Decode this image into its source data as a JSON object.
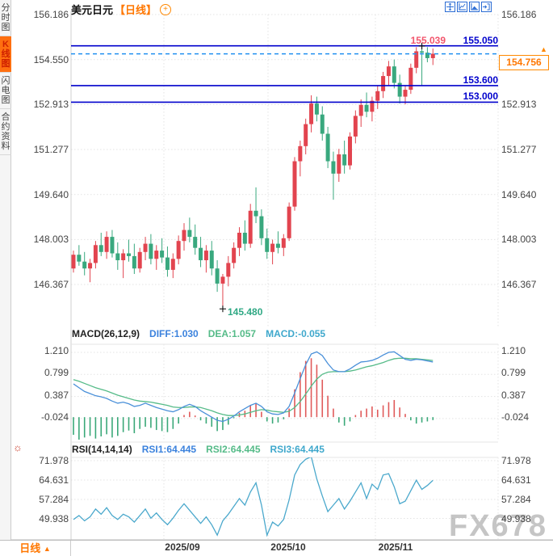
{
  "header": {
    "title": "美元日元",
    "period_tag": "【日线】",
    "expand_icon": "+"
  },
  "toolbar": {
    "icons": [
      "pan-crosshair",
      "chart-window",
      "chart-area",
      "exit"
    ]
  },
  "sidebar": {
    "tabs": [
      {
        "label": "分时图",
        "selected": false
      },
      {
        "label": "K线图",
        "selected": true
      },
      {
        "label": "闪电图",
        "selected": false
      },
      {
        "label": "合约资料",
        "selected": false
      }
    ]
  },
  "main_chart": {
    "left_axis": [
      "156.186",
      "154.550",
      "152.913",
      "151.277",
      "149.640",
      "148.003",
      "146.367"
    ],
    "right_axis": [
      "156.186",
      "152.913",
      "151.277",
      "149.640",
      "148.003",
      "146.367"
    ],
    "high_label": "155.039",
    "low_label": "145.480",
    "levels": [
      {
        "label": "155.050"
      },
      {
        "label": "153.600"
      },
      {
        "label": "153.000"
      }
    ],
    "current_price_label": "154.756",
    "price_arrow": "▲"
  },
  "macd_panel": {
    "header": {
      "name": "MACD(26,12,9)",
      "diff": "DIFF:1.030",
      "dea": "DEA:1.057",
      "macd": "MACD:-0.055"
    },
    "axis": [
      "1.210",
      "0.799",
      "0.387",
      "-0.024"
    ]
  },
  "rsi_panel": {
    "header": {
      "name": "RSI(14,14,14)",
      "rsi1": "RSI1:64.445",
      "rsi2": "RSI2:64.445",
      "rsi3": "RSI3:64.445"
    },
    "settings_icon": "☼",
    "axis": [
      "71.978",
      "64.631",
      "57.284",
      "49.938"
    ]
  },
  "x_axis": {
    "labels": [
      "2025/09",
      "2025/10",
      "2025/11"
    ]
  },
  "bottom_bar": {
    "period": "日线",
    "arrow": "▲"
  },
  "watermark": "FX678",
  "colors": {
    "up": "#e2444f",
    "down": "#39a87e",
    "level_blue": "#0000cc",
    "current_dashed": "#2090f0",
    "accent_orange": "#ff7700",
    "high_pink": "#f2566d",
    "low_green": "#2fa884",
    "diff_blue": "#4a90d9",
    "dea_green": "#55bb88",
    "macd_cyan": "#3fa8cc",
    "rsi_cyan": "#4aa8cc"
  },
  "chart_data": [
    {
      "type": "candlestick",
      "name": "美元日元 日线",
      "x_month_ticks": [
        "2025/09",
        "2025/10",
        "2025/11"
      ],
      "y_ticks": [
        156.186,
        154.55,
        152.913,
        151.277,
        149.64,
        148.003,
        146.367
      ],
      "resistance_levels": [
        155.05,
        153.6,
        153.0
      ],
      "current_price": 154.756,
      "marked_high": 155.039,
      "marked_low": 145.48,
      "marked_high_index": 63,
      "marked_low_index": 27,
      "ohlc": [
        [
          146.95,
          147.6,
          146.8,
          147.45
        ],
        [
          147.45,
          147.8,
          147.05,
          147.2
        ],
        [
          147.2,
          147.55,
          146.7,
          146.95
        ],
        [
          146.95,
          147.3,
          146.45,
          147.15
        ],
        [
          147.15,
          147.95,
          146.95,
          147.8
        ],
        [
          147.8,
          148.25,
          147.4,
          147.55
        ],
        [
          147.55,
          148.3,
          147.3,
          148.1
        ],
        [
          148.1,
          148.35,
          147.35,
          147.5
        ],
        [
          147.5,
          147.9,
          146.9,
          147.25
        ],
        [
          147.25,
          147.65,
          146.6,
          147.5
        ],
        [
          147.5,
          148.0,
          147.2,
          147.4
        ],
        [
          147.4,
          147.85,
          146.75,
          146.95
        ],
        [
          146.95,
          147.7,
          146.8,
          147.55
        ],
        [
          147.55,
          148.1,
          147.25,
          147.85
        ],
        [
          147.85,
          148.2,
          147.1,
          147.3
        ],
        [
          147.3,
          147.8,
          146.9,
          147.6
        ],
        [
          147.6,
          148.05,
          147.15,
          147.35
        ],
        [
          147.35,
          147.75,
          146.65,
          146.9
        ],
        [
          146.9,
          147.5,
          146.6,
          147.3
        ],
        [
          147.3,
          148.15,
          147.1,
          147.95
        ],
        [
          147.95,
          148.6,
          147.6,
          148.35
        ],
        [
          148.35,
          148.8,
          147.9,
          148.1
        ],
        [
          148.1,
          148.55,
          147.45,
          147.7
        ],
        [
          147.7,
          148.1,
          147.0,
          147.25
        ],
        [
          147.25,
          147.8,
          146.8,
          147.6
        ],
        [
          147.6,
          147.95,
          146.7,
          146.95
        ],
        [
          146.95,
          147.25,
          146.1,
          146.4
        ],
        [
          146.4,
          146.75,
          145.48,
          146.65
        ],
        [
          146.65,
          147.4,
          146.3,
          147.15
        ],
        [
          147.15,
          147.9,
          146.95,
          147.7
        ],
        [
          147.7,
          148.45,
          147.4,
          148.25
        ],
        [
          148.25,
          148.7,
          147.6,
          147.85
        ],
        [
          147.85,
          149.3,
          147.7,
          149.05
        ],
        [
          149.05,
          149.9,
          148.6,
          148.85
        ],
        [
          148.85,
          149.1,
          147.8,
          148.05
        ],
        [
          148.05,
          148.4,
          147.3,
          147.55
        ],
        [
          147.55,
          148.0,
          147.1,
          147.85
        ],
        [
          147.85,
          148.3,
          147.5,
          147.7
        ],
        [
          147.7,
          148.2,
          147.4,
          148.05
        ],
        [
          148.05,
          149.35,
          147.95,
          149.2
        ],
        [
          149.2,
          151.0,
          149.05,
          150.85
        ],
        [
          150.85,
          151.6,
          150.3,
          151.4
        ],
        [
          151.4,
          152.4,
          151.1,
          152.2
        ],
        [
          152.2,
          153.25,
          151.9,
          152.95
        ],
        [
          152.95,
          153.2,
          152.3,
          152.55
        ],
        [
          152.55,
          152.85,
          151.6,
          151.85
        ],
        [
          151.85,
          152.1,
          150.6,
          150.85
        ],
        [
          150.85,
          151.2,
          149.45,
          150.4
        ],
        [
          150.4,
          151.3,
          150.1,
          151.1
        ],
        [
          151.1,
          151.6,
          150.4,
          150.7
        ],
        [
          150.7,
          151.9,
          150.55,
          151.75
        ],
        [
          151.75,
          152.7,
          151.5,
          152.5
        ],
        [
          152.5,
          153.1,
          152.1,
          152.9
        ],
        [
          152.9,
          153.35,
          152.45,
          152.65
        ],
        [
          152.65,
          153.2,
          152.3,
          153.05
        ],
        [
          153.05,
          153.6,
          152.75,
          153.4
        ],
        [
          153.4,
          154.1,
          153.15,
          153.95
        ],
        [
          153.95,
          154.5,
          153.6,
          154.3
        ],
        [
          154.3,
          154.55,
          153.5,
          153.7
        ],
        [
          153.7,
          154.0,
          152.95,
          153.2
        ],
        [
          153.2,
          153.6,
          152.92,
          153.45
        ],
        [
          153.45,
          154.4,
          153.3,
          154.25
        ],
        [
          154.25,
          155.0,
          154.05,
          154.85
        ],
        [
          154.85,
          155.04,
          153.6,
          154.8
        ],
        [
          154.8,
          155.0,
          154.45,
          154.6
        ],
        [
          154.6,
          154.95,
          154.35,
          154.76
        ]
      ]
    },
    {
      "type": "macd",
      "name": "MACD(26,12,9)",
      "y_ticks": [
        1.21,
        0.799,
        0.387,
        -0.024
      ],
      "last": {
        "diff": 1.03,
        "dea": 1.057,
        "macd": -0.055
      },
      "series": [
        {
          "name": "DIFF",
          "values": [
            0.62,
            0.55,
            0.48,
            0.44,
            0.4,
            0.38,
            0.35,
            0.3,
            0.26,
            0.28,
            0.25,
            0.2,
            0.22,
            0.26,
            0.22,
            0.18,
            0.15,
            0.12,
            0.1,
            0.14,
            0.2,
            0.24,
            0.2,
            0.12,
            0.06,
            0.0,
            -0.06,
            -0.08,
            -0.04,
            0.02,
            0.1,
            0.16,
            0.22,
            0.26,
            0.2,
            0.1,
            0.06,
            0.05,
            0.08,
            0.2,
            0.45,
            0.72,
            0.98,
            1.18,
            1.22,
            1.15,
            1.0,
            0.88,
            0.85,
            0.85,
            0.9,
            0.97,
            1.03,
            1.04,
            1.06,
            1.1,
            1.16,
            1.21,
            1.22,
            1.15,
            1.08,
            1.06,
            1.08,
            1.07,
            1.05,
            1.03
          ]
        },
        {
          "name": "DEA",
          "values": [
            0.7,
            0.67,
            0.63,
            0.59,
            0.55,
            0.52,
            0.49,
            0.45,
            0.41,
            0.38,
            0.35,
            0.32,
            0.3,
            0.29,
            0.28,
            0.26,
            0.24,
            0.22,
            0.19,
            0.18,
            0.18,
            0.19,
            0.19,
            0.18,
            0.15,
            0.12,
            0.08,
            0.05,
            0.03,
            0.03,
            0.04,
            0.06,
            0.09,
            0.12,
            0.14,
            0.13,
            0.11,
            0.1,
            0.09,
            0.11,
            0.18,
            0.29,
            0.43,
            0.58,
            0.71,
            0.8,
            0.84,
            0.85,
            0.85,
            0.85,
            0.86,
            0.88,
            0.91,
            0.94,
            0.96,
            0.99,
            1.02,
            1.06,
            1.09,
            1.1,
            1.1,
            1.09,
            1.09,
            1.08,
            1.07,
            1.057
          ]
        },
        {
          "name": "HIST",
          "values": [
            -0.33,
            -0.42,
            -0.38,
            -0.35,
            -0.4,
            -0.36,
            -0.32,
            -0.38,
            -0.35,
            -0.28,
            -0.25,
            -0.3,
            -0.22,
            -0.18,
            -0.2,
            -0.24,
            -0.26,
            -0.28,
            -0.22,
            -0.12,
            0.04,
            0.1,
            0.03,
            -0.06,
            -0.12,
            -0.18,
            -0.26,
            -0.24,
            -0.14,
            -0.02,
            0.08,
            0.12,
            0.22,
            0.26,
            0.1,
            -0.08,
            -0.12,
            -0.1,
            -0.04,
            0.16,
            0.52,
            0.84,
            1.05,
            1.1,
            0.98,
            0.7,
            0.4,
            0.16,
            -0.1,
            -0.16,
            -0.08,
            0.04,
            0.12,
            0.16,
            0.2,
            0.14,
            0.22,
            0.28,
            0.32,
            0.18,
            0.06,
            -0.06,
            -0.12,
            -0.1,
            -0.08,
            -0.055
          ]
        }
      ]
    },
    {
      "type": "line",
      "name": "RSI(14,14,14)",
      "y_ticks": [
        71.978,
        64.631,
        57.284,
        49.938
      ],
      "last": {
        "rsi1": 64.445,
        "rsi2": 64.445,
        "rsi3": 64.445
      },
      "values": [
        49.5,
        51.0,
        49.0,
        50.5,
        53.5,
        51.5,
        54.0,
        51.0,
        49.5,
        51.5,
        50.5,
        48.5,
        51.0,
        53.5,
        50.0,
        52.0,
        49.5,
        47.5,
        50.0,
        53.0,
        55.5,
        53.0,
        50.5,
        48.0,
        50.5,
        47.5,
        43.5,
        49.0,
        51.5,
        54.5,
        57.5,
        55.0,
        60.0,
        63.5,
        55.0,
        43.5,
        48.5,
        47.0,
        49.5,
        57.0,
        66.5,
        70.5,
        72.5,
        73.5,
        65.0,
        58.5,
        52.5,
        55.0,
        57.5,
        53.5,
        56.5,
        60.0,
        63.5,
        57.5,
        63.0,
        61.0,
        66.5,
        67.0,
        62.0,
        55.5,
        56.5,
        60.5,
        64.5,
        61.0,
        62.5,
        64.445
      ]
    }
  ]
}
